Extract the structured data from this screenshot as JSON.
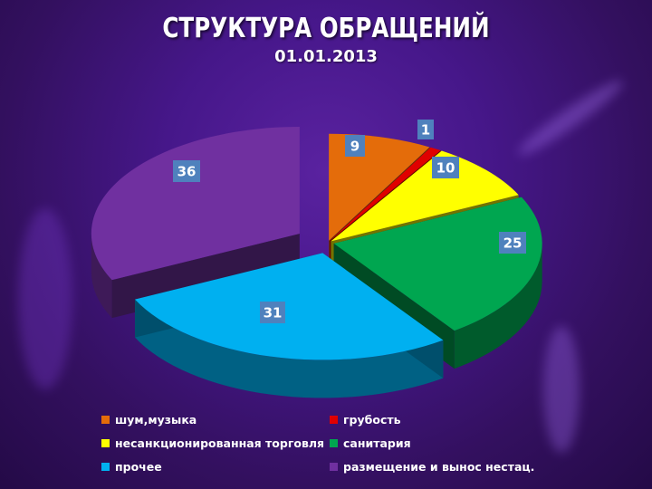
{
  "slide": {
    "title": "СТРУКТУРА ОБРАЩЕНИЙ",
    "subtitle": "01.01.2013"
  },
  "chart_data": {
    "type": "pie",
    "style": "3d-exploded",
    "title": "СТРУКТУРА ОБРАЩЕНИЙ",
    "subtitle": "01.01.2013",
    "legend_position": "bottom",
    "slices": [
      {
        "label": "шум,музыка",
        "value": 9,
        "color": "#e46c0a"
      },
      {
        "label": "грубость",
        "value": 1,
        "color": "#e00000"
      },
      {
        "label": "несанкционированная торговля",
        "value": 10,
        "color": "#ffff00"
      },
      {
        "label": "санитария",
        "value": 25,
        "color": "#00a650"
      },
      {
        "label": "прочее",
        "value": 31,
        "color": "#00b0f0"
      },
      {
        "label": "размещение и вынос нестац.",
        "value": 36,
        "color": "#7030a0"
      }
    ],
    "label_box_color": "#4f81bd"
  }
}
